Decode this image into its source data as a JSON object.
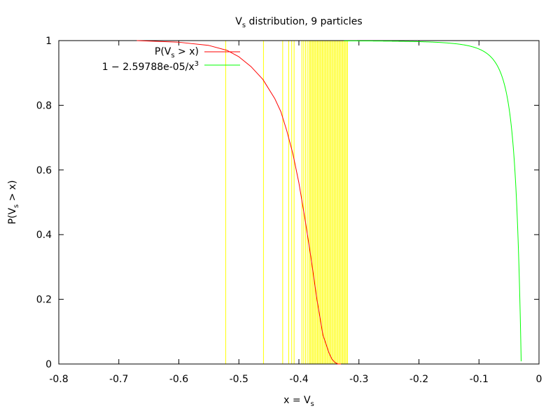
{
  "chart_data": {
    "type": "line",
    "title": {
      "pre": "V",
      "sub": "s",
      "post": " distribution, 9 particles"
    },
    "xlabel": {
      "pre": "x = V",
      "sub": "s",
      "post": ""
    },
    "ylabel": {
      "pre": "P(V",
      "sub": "s",
      "post": " > x)"
    },
    "xlim": [
      -0.8,
      0
    ],
    "ylim": [
      0,
      1
    ],
    "xticks": [
      "-0.8",
      "-0.7",
      "-0.6",
      "-0.5",
      "-0.4",
      "-0.3",
      "-0.2",
      "-0.1",
      "0"
    ],
    "xtick_values": [
      -0.8,
      -0.7,
      -0.6,
      -0.5,
      -0.4,
      -0.3,
      -0.2,
      -0.1,
      0
    ],
    "yticks": [
      "0",
      "0.2",
      "0.4",
      "0.6",
      "0.8",
      "1"
    ],
    "ytick_values": [
      0,
      0.2,
      0.4,
      0.6,
      0.8,
      1
    ],
    "grid": false,
    "legend_position": "top-left",
    "sample_lines": {
      "color": "#ffff00",
      "x": [
        -0.522,
        -0.459,
        -0.427,
        -0.417,
        -0.412,
        -0.408,
        -0.395,
        -0.392,
        -0.389,
        -0.386,
        -0.383,
        -0.381,
        -0.379,
        -0.377,
        -0.375,
        -0.373,
        -0.371,
        -0.369,
        -0.367,
        -0.365,
        -0.363,
        -0.361,
        -0.359,
        -0.357,
        -0.355,
        -0.353,
        -0.351,
        -0.349,
        -0.347,
        -0.345,
        -0.343,
        -0.341,
        -0.339,
        -0.337,
        -0.335,
        -0.333,
        -0.331,
        -0.329,
        -0.327,
        -0.325,
        -0.323,
        -0.321,
        -0.319
      ]
    },
    "series": [
      {
        "name": {
          "pre": "P(V",
          "sub": "s",
          "post": " > x)"
        },
        "color": "#ff0000",
        "points": [
          [
            -0.67,
            1.0
          ],
          [
            -0.6,
            0.995
          ],
          [
            -0.55,
            0.985
          ],
          [
            -0.52,
            0.97
          ],
          [
            -0.5,
            0.95
          ],
          [
            -0.48,
            0.92
          ],
          [
            -0.46,
            0.88
          ],
          [
            -0.44,
            0.82
          ],
          [
            -0.43,
            0.78
          ],
          [
            -0.42,
            0.72
          ],
          [
            -0.41,
            0.65
          ],
          [
            -0.4,
            0.56
          ],
          [
            -0.39,
            0.45
          ],
          [
            -0.38,
            0.33
          ],
          [
            -0.37,
            0.2
          ],
          [
            -0.36,
            0.09
          ],
          [
            -0.35,
            0.035
          ],
          [
            -0.345,
            0.015
          ],
          [
            -0.34,
            0.005
          ],
          [
            -0.335,
            0.0
          ],
          [
            -0.33,
            0.0
          ]
        ]
      },
      {
        "name": {
          "pre": "1 − 2.59788e-05/x",
          "sup": "3"
        },
        "color": "#00ff00",
        "formula_coef": 2.59788e-05,
        "x_range": [
          -0.325,
          -0.0297
        ]
      }
    ]
  }
}
